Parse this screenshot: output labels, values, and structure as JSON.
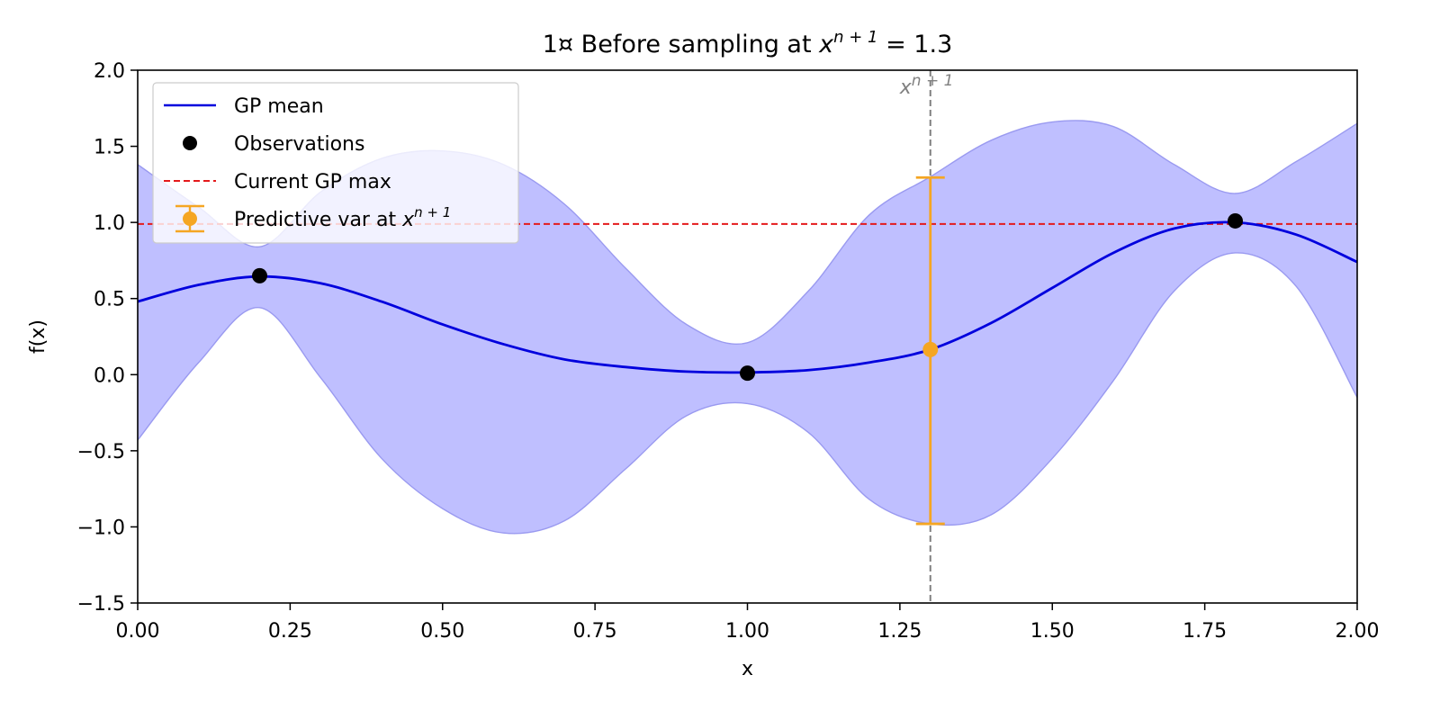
{
  "chart_data": {
    "type": "line",
    "title_prefix": "1¤ Before sampling at ",
    "title_math": "x",
    "title_sup": "n + 1",
    "title_suffix": " = 1.3",
    "xlabel": "x",
    "ylabel": "f(x)",
    "xlim": [
      0,
      2
    ],
    "ylim": [
      -1.5,
      2
    ],
    "xticks": [
      0,
      0.25,
      0.5,
      0.75,
      1.0,
      1.25,
      1.5,
      1.75,
      2.0
    ],
    "xtick_labels": [
      "0.00",
      "0.25",
      "0.50",
      "0.75",
      "1.00",
      "1.25",
      "1.50",
      "1.75",
      "2.00"
    ],
    "yticks": [
      -1.5,
      -1.0,
      -0.5,
      0.0,
      0.5,
      1.0,
      1.5,
      2.0
    ],
    "ytick_labels": [
      "−1.5",
      "−1.0",
      "−0.5",
      "0.0",
      "0.5",
      "1.0",
      "1.5",
      "2.0"
    ],
    "grid": false,
    "legend_position": "top-left",
    "series": [
      {
        "name": "GP mean",
        "kind": "line",
        "color": "#0000dd",
        "x": [
          0,
          0.1,
          0.2,
          0.3,
          0.4,
          0.5,
          0.6,
          0.7,
          0.8,
          0.9,
          1.0,
          1.1,
          1.2,
          1.3,
          1.4,
          1.5,
          1.6,
          1.7,
          1.8,
          1.9,
          2.0
        ],
        "y": [
          0.48,
          0.59,
          0.645,
          0.6,
          0.48,
          0.33,
          0.2,
          0.1,
          0.05,
          0.02,
          0.015,
          0.03,
          0.08,
          0.165,
          0.34,
          0.57,
          0.8,
          0.96,
          1.0,
          0.92,
          0.74
        ]
      },
      {
        "name": "Observations",
        "kind": "scatter",
        "color": "#000000",
        "x": [
          0.2,
          1.0,
          1.8
        ],
        "y": [
          0.65,
          0.01,
          1.01
        ]
      },
      {
        "name": "Current GP max",
        "kind": "hline",
        "color": "#e41a1c",
        "y": 0.99
      },
      {
        "name": "Predictive var at ",
        "name_math": "x",
        "name_sup": "n + 1",
        "kind": "errorbar",
        "color": "#f5a623",
        "x": 1.3,
        "y": 0.165,
        "y_low": -0.98,
        "y_high": 1.295
      }
    ],
    "band": {
      "color": "#8080ff",
      "edge_color": "#9a9af0",
      "x": [
        0,
        0.1,
        0.2,
        0.3,
        0.4,
        0.5,
        0.6,
        0.7,
        0.8,
        0.9,
        1.0,
        1.1,
        1.2,
        1.3,
        1.4,
        1.5,
        1.6,
        1.7,
        1.8,
        1.9,
        2.0
      ],
      "upper": [
        1.38,
        1.1,
        0.84,
        1.2,
        1.42,
        1.47,
        1.38,
        1.12,
        0.7,
        0.33,
        0.21,
        0.55,
        1.05,
        1.3,
        1.54,
        1.66,
        1.63,
        1.38,
        1.19,
        1.4,
        1.65
      ],
      "lower": [
        -0.43,
        0.08,
        0.44,
        -0.02,
        -0.55,
        -0.88,
        -1.04,
        -0.96,
        -0.62,
        -0.27,
        -0.19,
        -0.38,
        -0.82,
        -0.98,
        -0.92,
        -0.55,
        -0.04,
        0.55,
        0.8,
        0.58,
        -0.15
      ]
    },
    "vline": {
      "x": 1.3,
      "color": "#808080",
      "label_math": "x",
      "label_sup": "n + 1"
    }
  }
}
